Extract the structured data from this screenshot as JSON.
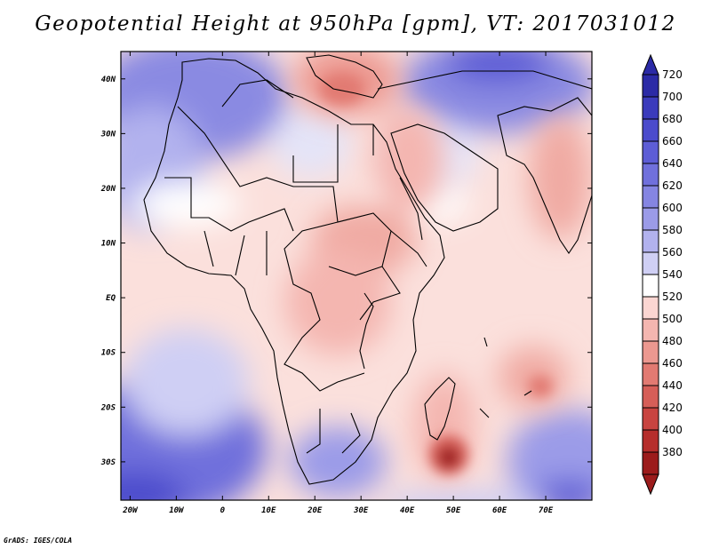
{
  "title": "Geopotential Height at 950hPa [gpm], VT: 2017031012",
  "credit": "GrADS: IGES/COLA",
  "map": {
    "lon_range": [
      -22,
      80
    ],
    "lat_range": [
      -37,
      45
    ],
    "lat_ticks": [
      {
        "value": 40,
        "label": "40N"
      },
      {
        "value": 30,
        "label": "30N"
      },
      {
        "value": 20,
        "label": "20N"
      },
      {
        "value": 10,
        "label": "10N"
      },
      {
        "value": 0,
        "label": "EQ"
      },
      {
        "value": -10,
        "label": "10S"
      },
      {
        "value": -20,
        "label": "20S"
      },
      {
        "value": -30,
        "label": "30S"
      }
    ],
    "lon_ticks": [
      {
        "value": -20,
        "label": "20W"
      },
      {
        "value": -10,
        "label": "10W"
      },
      {
        "value": 0,
        "label": "0"
      },
      {
        "value": 10,
        "label": "10E"
      },
      {
        "value": 20,
        "label": "20E"
      },
      {
        "value": 30,
        "label": "30E"
      },
      {
        "value": 40,
        "label": "40E"
      },
      {
        "value": 50,
        "label": "50E"
      },
      {
        "value": 60,
        "label": "60E"
      },
      {
        "value": 70,
        "label": "70E"
      }
    ]
  },
  "colorbar": {
    "levels": [
      "720",
      "700",
      "680",
      "660",
      "640",
      "620",
      "600",
      "580",
      "560",
      "540",
      "520",
      "500",
      "480",
      "460",
      "440",
      "420",
      "400",
      "380"
    ],
    "colors": [
      "#2b2aa6",
      "#3b3bbc",
      "#4b4bcc",
      "#5d5dd6",
      "#7070dc",
      "#8585e2",
      "#9b9be8",
      "#b2b2ee",
      "#cfcff4",
      "#ffffff",
      "#fbd6d2",
      "#f4b6b0",
      "#ec9890",
      "#e27a72",
      "#d65e58",
      "#c84440",
      "#b62e2c",
      "#9c1c1c"
    ]
  }
}
